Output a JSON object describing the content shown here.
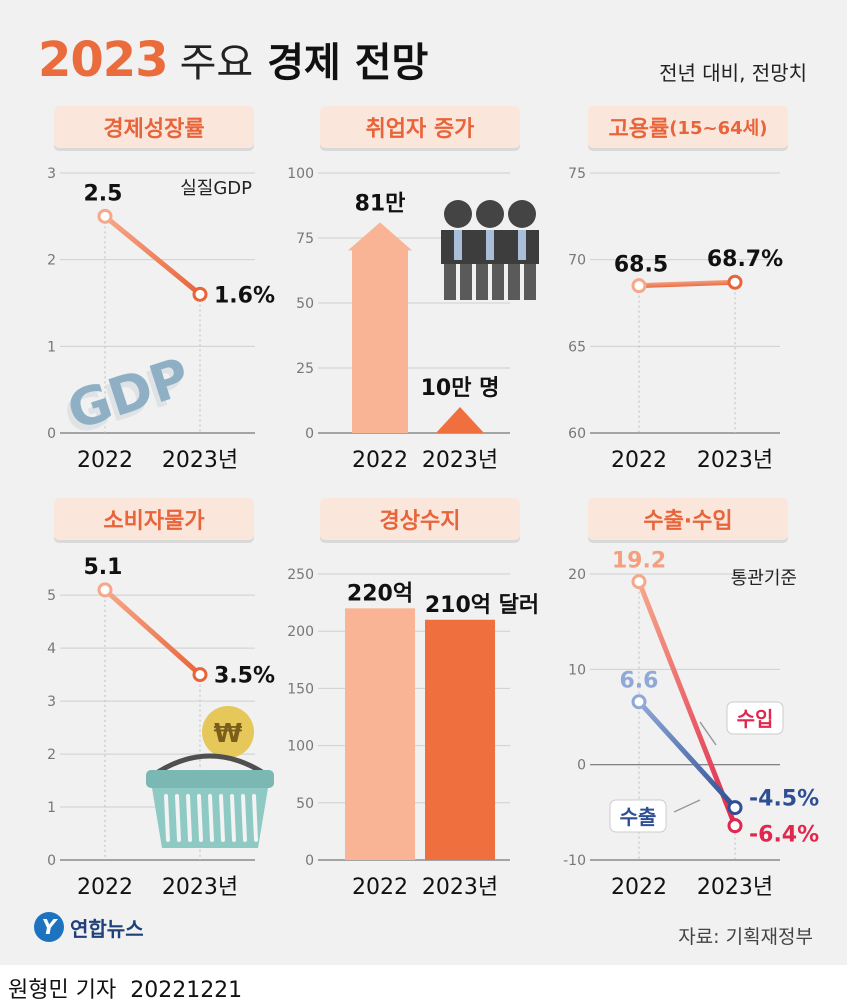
{
  "title": {
    "year": "2023",
    "mid": "주요",
    "bold": "경제 전망"
  },
  "subtitle": "전년 대비, 전망치",
  "source": "자료: 기획재정부",
  "logo": {
    "mark": "Y",
    "text": "연합뉴스"
  },
  "credit": {
    "name": "원형민 기자",
    "date": "20221221"
  },
  "colors": {
    "accent": "#e8643a",
    "light_orange": "#f8b495",
    "dark_orange": "#ef6f3f",
    "export_blue": "#2e4f94",
    "import_red": "#e0284e"
  },
  "chart_data": [
    {
      "id": "gdp",
      "type": "line",
      "panel_title": "경제성장률",
      "categories": [
        "2022",
        "2023년"
      ],
      "values": [
        2.5,
        1.6
      ],
      "value_labels": [
        "2.5",
        "1.6%"
      ],
      "yticks": [
        "0",
        "1",
        "2",
        "3"
      ],
      "ylim": [
        0,
        3
      ],
      "note": "실질GDP",
      "icon": "gdp-3d-text",
      "icon_text": "GDP"
    },
    {
      "id": "jobs",
      "type": "bar",
      "panel_title": "취업자 증가",
      "categories": [
        "2022",
        "2023년"
      ],
      "values": [
        81,
        10
      ],
      "value_labels": [
        "81만",
        "10만 명"
      ],
      "yticks": [
        "0",
        "25",
        "50",
        "75",
        "100"
      ],
      "ylim": [
        0,
        100
      ],
      "icon": "workers-icon"
    },
    {
      "id": "employment",
      "type": "line",
      "panel_title": "고용률",
      "panel_sub": "(15~64세)",
      "categories": [
        "2022",
        "2023년"
      ],
      "values": [
        68.5,
        68.7
      ],
      "value_labels": [
        "68.5",
        "68.7%"
      ],
      "yticks": [
        "60",
        "65",
        "70",
        "75"
      ],
      "ylim": [
        60,
        75
      ]
    },
    {
      "id": "cpi",
      "type": "line",
      "panel_title": "소비자물가",
      "categories": [
        "2022",
        "2023년"
      ],
      "values": [
        5.1,
        3.5
      ],
      "value_labels": [
        "5.1",
        "3.5%"
      ],
      "yticks": [
        "0",
        "1",
        "2",
        "3",
        "4",
        "5"
      ],
      "ylim": [
        0,
        5.4
      ],
      "icon": "shopping-basket-icon",
      "icon_text": "₩"
    },
    {
      "id": "current",
      "type": "bar",
      "panel_title": "경상수지",
      "categories": [
        "2022",
        "2023년"
      ],
      "values": [
        220,
        210
      ],
      "value_labels": [
        "220억",
        "210억 달러"
      ],
      "yticks": [
        "0",
        "50",
        "100",
        "150",
        "200",
        "250"
      ],
      "ylim": [
        0,
        250
      ]
    },
    {
      "id": "trade",
      "type": "line",
      "panel_title": "수출·수입",
      "categories": [
        "2022",
        "2023년"
      ],
      "note": "통관기준",
      "yticks": [
        "-10",
        "0",
        "10",
        "20"
      ],
      "ylim": [
        -10,
        20
      ],
      "series": [
        {
          "name": "수입",
          "values": [
            19.2,
            -6.4
          ],
          "value_labels": [
            "19.2",
            "-6.4%"
          ]
        },
        {
          "name": "수출",
          "values": [
            6.6,
            -4.5
          ],
          "value_labels": [
            "6.6",
            "-4.5%"
          ]
        }
      ]
    }
  ]
}
